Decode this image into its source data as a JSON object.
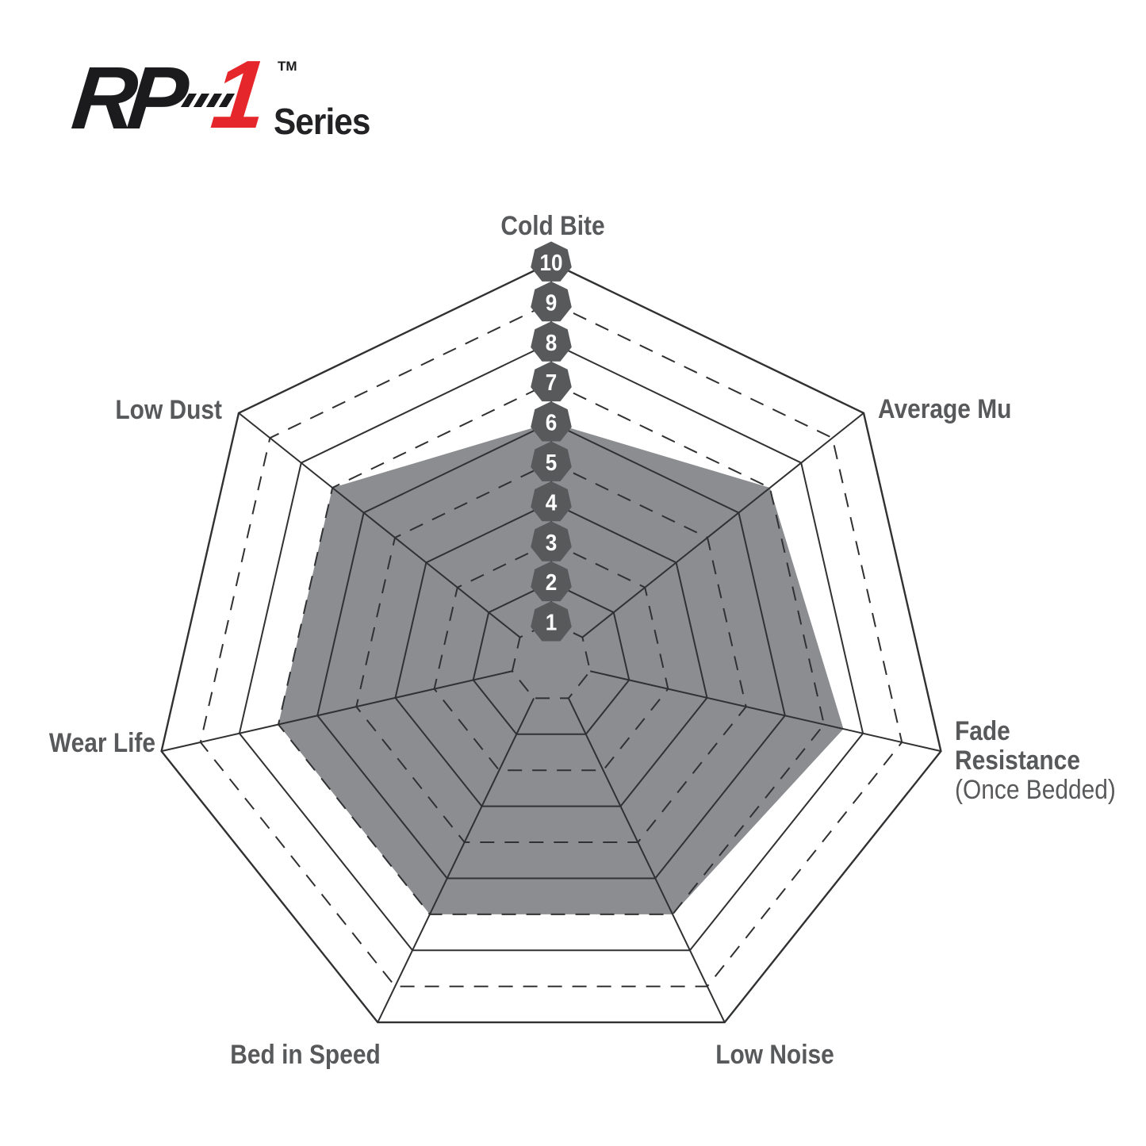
{
  "logo": {
    "brand_prefix": "RP",
    "brand_number": "1",
    "trademark": "TM",
    "series_label": "Series",
    "red": "#e5272b",
    "black": "#1b1b1d"
  },
  "chart_data": {
    "type": "radar",
    "axes": [
      "Cold Bite",
      "Average Mu",
      "Fade Resistance (Once Bedded)",
      "Low Noise",
      "Bed in Speed",
      "Wear Life",
      "Low Dust"
    ],
    "axis_label_lines": [
      [
        "Cold Bite"
      ],
      [
        "Average Mu"
      ],
      [
        "Fade",
        "Resistance",
        "(Once Bedded)"
      ],
      [
        "Low Noise"
      ],
      [
        "Bed in Speed"
      ],
      [
        "Wear Life"
      ],
      [
        "Low Dust"
      ]
    ],
    "series": [
      {
        "name": "RP-1 Series",
        "values": [
          6,
          7,
          7.5,
          7,
          7,
          7,
          7
        ]
      }
    ],
    "scale_min": 1,
    "scale_max": 10,
    "scale_ticks": [
      "1",
      "2",
      "3",
      "4",
      "5",
      "6",
      "7",
      "8",
      "9",
      "10"
    ],
    "grid_style": "solid rings on even values, dashed rings on odd values, radial spokes from ring 1 to ring 10",
    "legend_position": "none",
    "colors": {
      "fill_gray": "#8b8d90",
      "badge_gray": "#58595b",
      "grid_line": "#303133",
      "label_gray": "#58595b",
      "badge_text": "#ffffff"
    }
  }
}
